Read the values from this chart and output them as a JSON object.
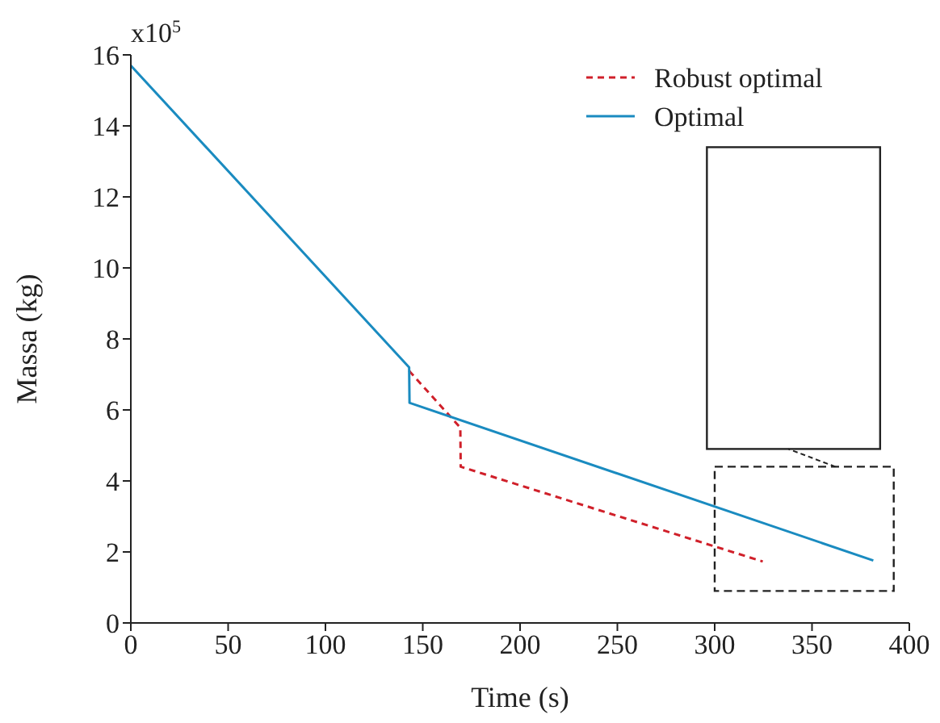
{
  "chart_data": {
    "type": "line",
    "xlabel": "Time (s)",
    "ylabel": "Massa (kg)",
    "annotations": [
      "x10$^{5}$"
    ],
    "xlim": [
      0,
      400
    ],
    "xticks": [
      0,
      50,
      100,
      150,
      200,
      250,
      300,
      350,
      400
    ],
    "ylim": [
      0,
      16
    ],
    "yticks": [
      0,
      2,
      4,
      6,
      8,
      10,
      12,
      14,
      16
    ],
    "legend": "top right",
    "grid": false,
    "series": [
      {
        "name": "Robust optimal",
        "color": "#d0202a",
        "line_style": "dashed",
        "x": [
          143,
          169.3,
          169.5,
          324.7
        ],
        "values": [
          7.1,
          5.5,
          4.4,
          1.73
        ]
      },
      {
        "name": "Optimal",
        "color": "#1a8bc0",
        "line_style": "solid",
        "x": [
          0,
          143,
          143.2,
          381.5
        ],
        "values": [
          15.7,
          7.2,
          6.2,
          1.76
        ]
      }
    ]
  }
}
